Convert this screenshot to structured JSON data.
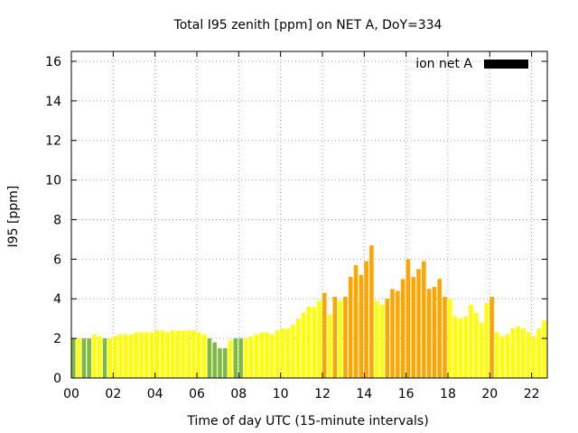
{
  "chart_data": {
    "type": "bar",
    "title": "Total I95 zenith [ppm] on NET A, DoY=334",
    "xlabel": "Time of day UTC (15-minute intervals)",
    "ylabel": "I95 [ppm]",
    "xlim": [
      0,
      22.75
    ],
    "ylim": [
      0,
      16.5
    ],
    "x_ticks": [
      0,
      2,
      4,
      6,
      8,
      10,
      12,
      14,
      16,
      18,
      20,
      22
    ],
    "x_tick_labels": [
      "00",
      "02",
      "04",
      "06",
      "08",
      "10",
      "12",
      "14",
      "16",
      "18",
      "20",
      "22"
    ],
    "y_ticks": [
      0,
      2,
      4,
      6,
      8,
      10,
      12,
      14,
      16
    ],
    "y_tick_labels": [
      "0",
      "2",
      "4",
      "6",
      "8",
      "10",
      "12",
      "14",
      "16"
    ],
    "grid": true,
    "legend": {
      "position": "top-right",
      "label": "ion net A",
      "color": "#000000"
    },
    "colors": {
      "green": "#7cbb3f",
      "yellow": "#ffff00",
      "orange": "#ffa500"
    },
    "interval_hours": 0.25,
    "series": [
      {
        "values": [
          2.0,
          2.0,
          2.0,
          2.0,
          2.2,
          2.1,
          2.0,
          2.0,
          2.1,
          2.2,
          2.2,
          2.2,
          2.3,
          2.3,
          2.3,
          2.3,
          2.4,
          2.4,
          2.3,
          2.4,
          2.4,
          2.4,
          2.4,
          2.4,
          2.3,
          2.2,
          2.0,
          1.8,
          1.5,
          1.5,
          1.9,
          2.0,
          2.0,
          2.0,
          2.1,
          2.2,
          2.3,
          2.3,
          2.2,
          2.4,
          2.5,
          2.5,
          2.7,
          3.0,
          3.3,
          3.6,
          3.6,
          3.9,
          4.3,
          3.2,
          4.1,
          3.9,
          4.1,
          5.1,
          5.7,
          5.2,
          5.9,
          6.7,
          3.9,
          3.7,
          4.0,
          4.5,
          4.4,
          5.0,
          6.0,
          5.1,
          5.5,
          5.9,
          4.5,
          4.6,
          5.0,
          4.1,
          4.0,
          3.1,
          3.0,
          3.1,
          3.7,
          3.3,
          2.8,
          3.8,
          4.1,
          2.3,
          2.1,
          2.2,
          2.5,
          2.6,
          2.5,
          2.3,
          2.1,
          2.5,
          2.9
        ],
        "colors": [
          "green",
          "yellow",
          "green",
          "green",
          "yellow",
          "yellow",
          "green",
          "yellow",
          "yellow",
          "yellow",
          "yellow",
          "yellow",
          "yellow",
          "yellow",
          "yellow",
          "yellow",
          "yellow",
          "yellow",
          "yellow",
          "yellow",
          "yellow",
          "yellow",
          "yellow",
          "yellow",
          "yellow",
          "yellow",
          "green",
          "green",
          "green",
          "green",
          "yellow",
          "green",
          "green",
          "yellow",
          "yellow",
          "yellow",
          "yellow",
          "yellow",
          "yellow",
          "yellow",
          "yellow",
          "yellow",
          "yellow",
          "yellow",
          "yellow",
          "yellow",
          "yellow",
          "yellow",
          "orange",
          "yellow",
          "orange",
          "yellow",
          "orange",
          "orange",
          "orange",
          "orange",
          "orange",
          "orange",
          "yellow",
          "yellow",
          "orange",
          "orange",
          "orange",
          "orange",
          "orange",
          "orange",
          "orange",
          "orange",
          "orange",
          "orange",
          "orange",
          "orange",
          "yellow",
          "yellow",
          "yellow",
          "yellow",
          "yellow",
          "yellow",
          "yellow",
          "yellow",
          "orange",
          "yellow",
          "yellow",
          "yellow",
          "yellow",
          "yellow",
          "yellow",
          "yellow",
          "yellow",
          "yellow",
          "yellow"
        ]
      }
    ]
  }
}
